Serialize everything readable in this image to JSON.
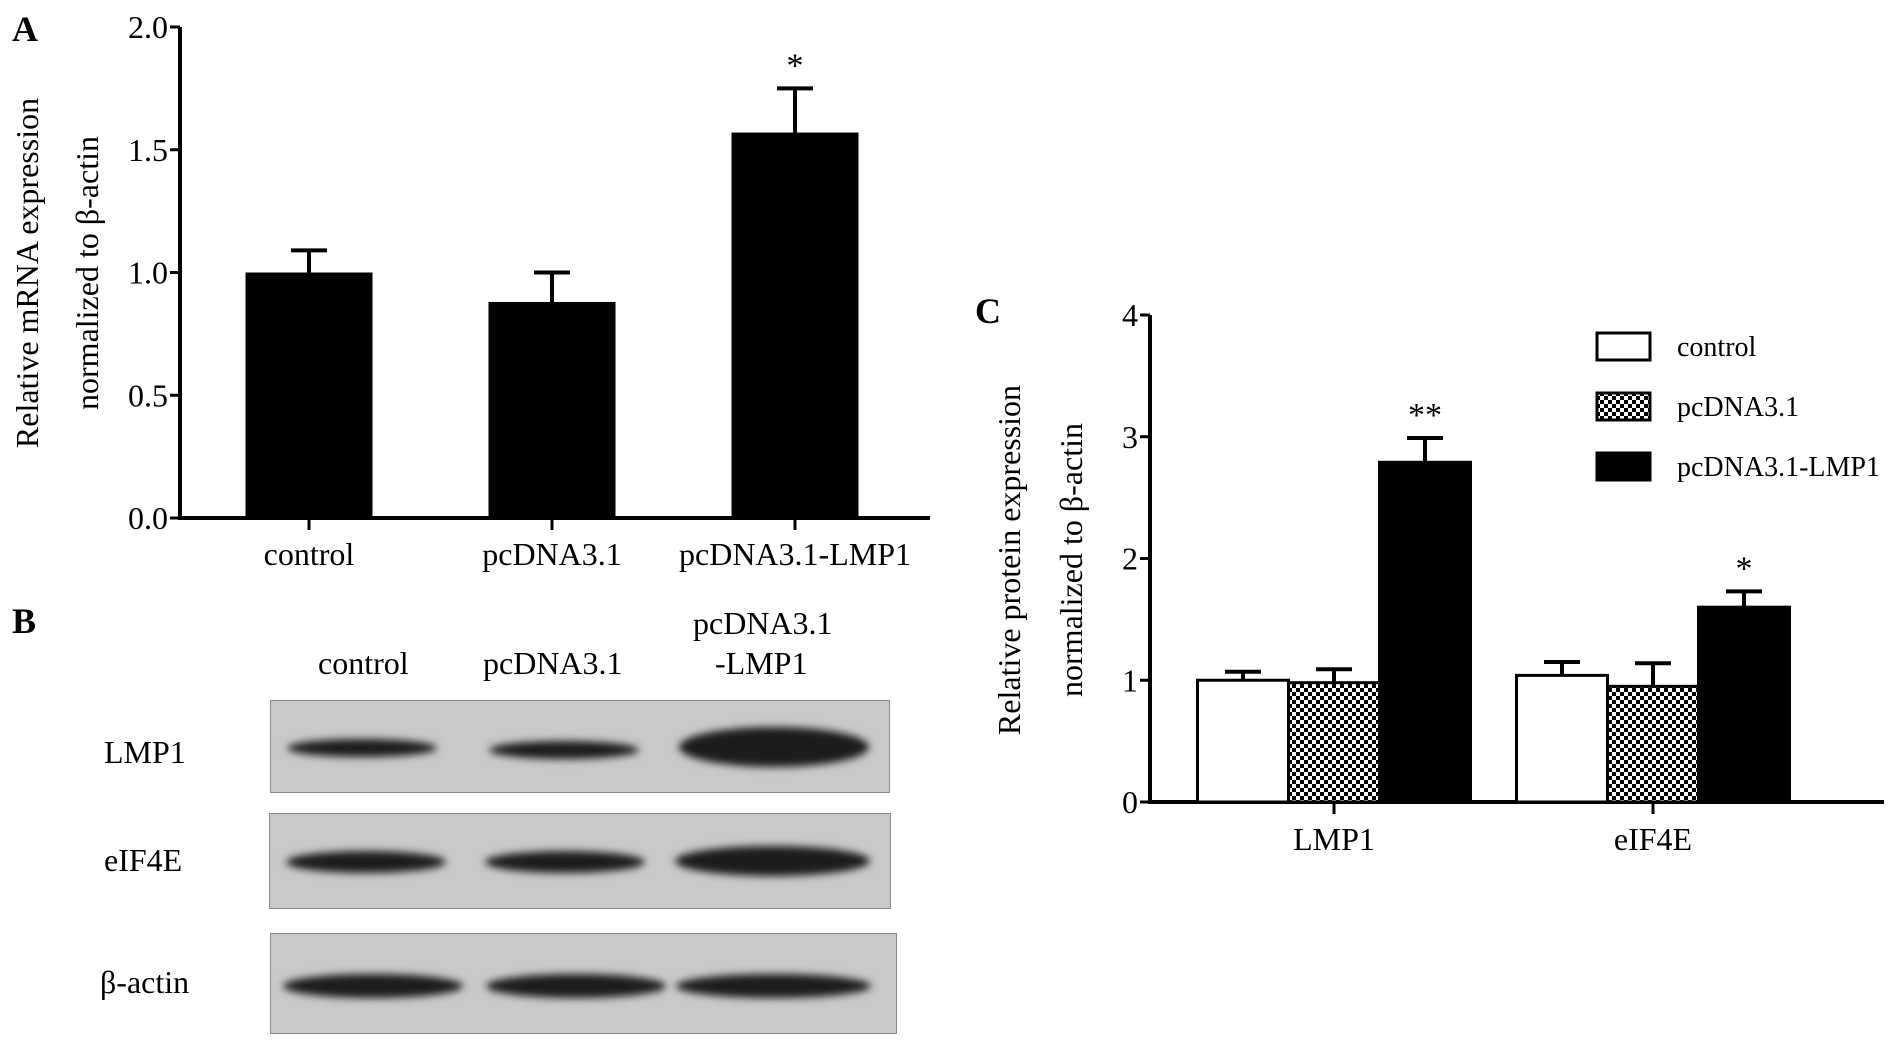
{
  "panels": {
    "a": "A",
    "b": "B",
    "c": "C"
  },
  "chart_data": [
    {
      "type": "bar",
      "ylabel_line1": "Relative mRNA expression",
      "ylabel_line2": "normalized to β-actin",
      "categories": [
        "control",
        "pcDNA3.1",
        "pcDNA3.1-LMP1"
      ],
      "values": [
        1.0,
        0.88,
        1.57
      ],
      "error_upper": [
        1.09,
        1.0,
        1.75
      ],
      "annotations": [
        "",
        "",
        "*"
      ],
      "ylim": [
        0,
        2.0
      ],
      "yticks": [
        "0.0",
        "0.5",
        "1.0",
        "1.5",
        "2.0"
      ],
      "bar_color": "#000000"
    },
    {
      "type": "bar",
      "ylabel_line1": "Relative protein expression",
      "ylabel_line2": "normalized to β-actin",
      "categories": [
        "LMP1",
        "eIF4E"
      ],
      "series": [
        {
          "name": "control",
          "values": [
            1.0,
            1.04
          ],
          "error_upper": [
            1.07,
            1.15
          ],
          "fill": "white",
          "annotations": [
            "",
            ""
          ]
        },
        {
          "name": "pcDNA3.1",
          "values": [
            0.98,
            0.95
          ],
          "error_upper": [
            1.09,
            1.14
          ],
          "fill": "checker",
          "annotations": [
            "",
            ""
          ]
        },
        {
          "name": "pcDNA3.1-LMP1",
          "values": [
            2.79,
            1.6
          ],
          "error_upper": [
            2.99,
            1.73
          ],
          "fill": "black",
          "annotations": [
            "**",
            "*"
          ]
        }
      ],
      "ylim": [
        0,
        4
      ],
      "yticks": [
        "0",
        "1",
        "2",
        "3",
        "4"
      ],
      "legend": "top-right"
    }
  ],
  "western_blot": {
    "columns": [
      "control",
      "pcDNA3.1",
      "pcDNA3.1",
      "-LMP1"
    ],
    "rows": [
      "LMP1",
      "eIF4E",
      "β-actin"
    ]
  }
}
